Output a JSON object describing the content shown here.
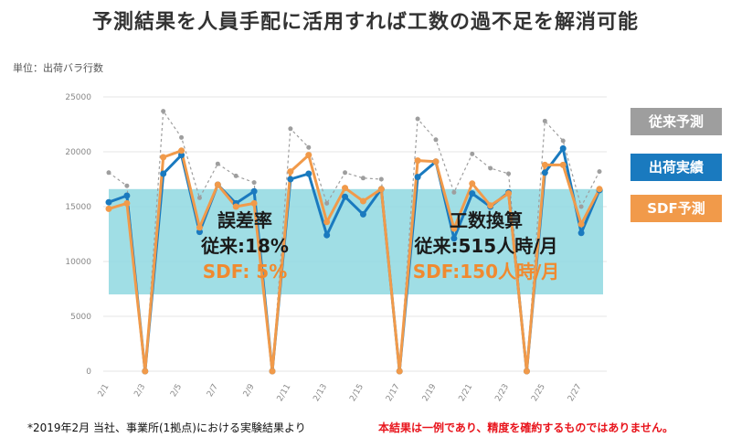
{
  "title": "予測結果を人員手配に活用すれば工数の過不足を解消可能",
  "chart_data": {
    "type": "line",
    "ylabel": "単位：出荷バラ行数",
    "ylim": [
      0,
      25000
    ],
    "yticks": [
      0,
      5000,
      10000,
      15000,
      20000,
      25000
    ],
    "x": [
      "2/1",
      "2/2",
      "2/3",
      "2/4",
      "2/5",
      "2/6",
      "2/7",
      "2/8",
      "2/9",
      "2/10",
      "2/11",
      "2/12",
      "2/13",
      "2/14",
      "2/15",
      "2/16",
      "2/17",
      "2/18",
      "2/19",
      "2/20",
      "2/21",
      "2/22",
      "2/23",
      "2/24",
      "2/25",
      "2/26",
      "2/27",
      "2/28"
    ],
    "xtick_labels": [
      "2/1",
      "2/3",
      "2/5",
      "2/7",
      "2/9",
      "2/11",
      "2/13",
      "2/15",
      "2/17",
      "2/19",
      "2/21",
      "2/23",
      "2/25",
      "2/27"
    ],
    "band": [
      7000,
      16600
    ],
    "series": [
      {
        "name": "従来予測",
        "color": "#9e9e9e",
        "dashed": true,
        "values": [
          18100,
          16900,
          0,
          23700,
          21300,
          15800,
          18900,
          17800,
          17200,
          0,
          22100,
          20400,
          15300,
          18100,
          17600,
          17500,
          0,
          23000,
          21100,
          16300,
          19800,
          18500,
          18000,
          0,
          22800,
          21000,
          15000,
          18200
        ]
      },
      {
        "name": "出荷実績",
        "color": "#1a7abf",
        "dashed": false,
        "values": [
          15400,
          16000,
          0,
          18000,
          19700,
          12700,
          17000,
          15300,
          16400,
          0,
          17500,
          18000,
          12400,
          15900,
          14300,
          16600,
          0,
          17700,
          19100,
          12100,
          16200,
          15000,
          16300,
          0,
          18100,
          20300,
          12600,
          16500
        ]
      },
      {
        "name": "SDF予測",
        "color": "#f19a4a",
        "dashed": false,
        "values": [
          14800,
          15300,
          0,
          19500,
          20100,
          13100,
          17000,
          15000,
          15300,
          0,
          18200,
          19700,
          13600,
          16700,
          15500,
          16600,
          0,
          19200,
          19100,
          13000,
          17100,
          15100,
          16200,
          0,
          18800,
          18800,
          13400,
          16600
        ]
      }
    ],
    "annotations": [
      {
        "lines": [
          "誤差率",
          "従来:18%",
          "SDF:  5%"
        ]
      },
      {
        "lines": [
          "工数換算",
          "従来:515人時/月",
          "SDF:150人時/月"
        ]
      }
    ]
  },
  "legend": [
    "従来予測",
    "出荷実績",
    "SDF予測"
  ],
  "notes": {
    "left": "*2019年2月 当社、事業所(1拠点)における実験結果より",
    "right": "本結果は一例であり、精度を確約するものではありません。"
  }
}
